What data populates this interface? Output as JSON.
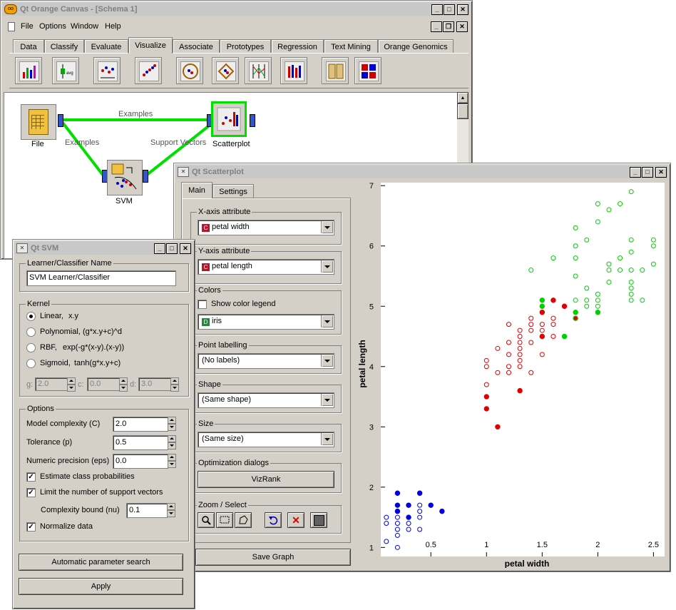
{
  "main_window": {
    "title": "Qt Orange Canvas - [Schema 1]",
    "menu": [
      "File",
      "Options",
      "Window",
      "Help"
    ],
    "tabs": [
      "Data",
      "Classify",
      "Evaluate",
      "Visualize",
      "Associate",
      "Prototypes",
      "Regression",
      "Text Mining",
      "Orange Genomics"
    ],
    "active_tab": "Visualize",
    "toolbar_icons": [
      "bar-chart-icon",
      "attribute-statistics-icon",
      "distributions-icon",
      "scatter-matrix-icon",
      "radviz-icon",
      "polyviz-icon",
      "parallel-coordinates-icon",
      "survey-plot-icon",
      "sieve-diagram-icon",
      "mosaic-display-icon"
    ]
  },
  "schema": {
    "widgets": {
      "file": "File",
      "scatterplot": "Scatterplot",
      "svm": "SVM"
    },
    "links": {
      "file_scatter": "Examples",
      "file_svm": "Examples",
      "svm_scatter": "Support Vectors"
    },
    "colors": {
      "link": "#00e000"
    }
  },
  "svm_window": {
    "title": "Qt SVM",
    "name_group": "Learner/Classifier Name",
    "name_value": "SVM Learner/Classifier",
    "kernel_group": "Kernel",
    "kernels": [
      {
        "name": "Linear,",
        "formula": "x.y",
        "selected": true
      },
      {
        "name": "Polynomial,",
        "formula": "(g*x.y+c)^d",
        "selected": false
      },
      {
        "name": "RBF,",
        "formula": "exp(-g*(x-y).(x-y))",
        "selected": false
      },
      {
        "name": "Sigmoid,",
        "formula": "tanh(g*x.y+c)",
        "selected": false
      }
    ],
    "kernel_params": {
      "g_label": "g:",
      "g_value": "2.0",
      "c_label": "c:",
      "c_value": "0.0",
      "d_label": "d:",
      "d_value": "3.0"
    },
    "options_group": "Options",
    "model_complexity": {
      "label": "Model complexity (C)",
      "value": "2.0"
    },
    "tolerance": {
      "label": "Tolerance (p)",
      "value": "0.5"
    },
    "numeric_precision": {
      "label": "Numeric precision (eps)",
      "value": "0.0"
    },
    "estimate_probabilities": {
      "label": "Estimate class probabilities",
      "checked": true
    },
    "limit_support_vectors": {
      "label": "Limit the number of support vectors",
      "checked": true
    },
    "complexity_bound": {
      "label": "Complexity bound (nu)",
      "value": "0.1"
    },
    "normalize": {
      "label": "Normalize data",
      "checked": true
    },
    "auto_search_button": "Automatic parameter search",
    "apply_button": "Apply"
  },
  "scatter_window": {
    "title": "Qt Scatterplot",
    "tabs": [
      "Main",
      "Settings"
    ],
    "active_tab": "Main",
    "x_axis_group": "X-axis attribute",
    "x_attr": {
      "badge": "C",
      "value": "petal width"
    },
    "y_axis_group": "Y-axis attribute",
    "y_attr": {
      "badge": "C",
      "value": "petal length"
    },
    "colors_group": "Colors",
    "show_color_legend": {
      "label": "Show color legend",
      "checked": false
    },
    "color_attr": {
      "badge": "D",
      "value": "iris"
    },
    "labelling_group": "Point labelling",
    "labelling_value": "(No labels)",
    "shape_group": "Shape",
    "shape_value": "(Same shape)",
    "size_group": "Size",
    "size_value": "(Same size)",
    "optimization_group": "Optimization dialogs",
    "vizrank_button": "VizRank",
    "zoom_group": "Zoom / Select",
    "zoom_tools": [
      "zoom-icon",
      "rectangle-select-icon",
      "polygon-select-icon",
      "undo-icon",
      "remove-selection-icon",
      "send-selection-icon"
    ],
    "save_button": "Save Graph",
    "badge_colors": {
      "continuous": "#c0102c",
      "discrete": "#208a3a"
    }
  },
  "chart_data": {
    "type": "scatter",
    "xlabel": "petal width",
    "ylabel": "petal length",
    "xlim": [
      0.05,
      2.6
    ],
    "ylim": [
      0.85,
      7.05
    ],
    "xticks": [
      0.5,
      1,
      1.5,
      2,
      2.5
    ],
    "yticks": [
      1,
      2,
      3,
      4,
      5,
      6,
      7
    ],
    "tick_labels_x": [
      "0.5",
      "1",
      "1.5",
      "2",
      "2.5"
    ],
    "tick_labels_y": [
      "1",
      "2",
      "3",
      "4",
      "5",
      "6",
      "7"
    ],
    "grid": false,
    "series": [
      {
        "class": "setosa",
        "color": "#0000e0",
        "points": [
          [
            0.1,
            1.1
          ],
          [
            0.1,
            1.4
          ],
          [
            0.1,
            1.5
          ],
          [
            0.2,
            1.0
          ],
          [
            0.2,
            1.2
          ],
          [
            0.2,
            1.3
          ],
          [
            0.2,
            1.4
          ],
          [
            0.2,
            1.5
          ],
          [
            0.2,
            1.6
          ],
          [
            0.3,
            1.3
          ],
          [
            0.3,
            1.4
          ],
          [
            0.3,
            1.7
          ],
          [
            0.4,
            1.3
          ],
          [
            0.4,
            1.5
          ],
          [
            0.4,
            1.6
          ],
          [
            0.4,
            1.7
          ],
          [
            0.4,
            1.9
          ],
          [
            0.5,
            1.7
          ]
        ],
        "support_vectors": [
          [
            0.2,
            1.9
          ],
          [
            0.2,
            1.7
          ],
          [
            0.2,
            1.6
          ],
          [
            0.3,
            1.5
          ],
          [
            0.3,
            1.7
          ],
          [
            0.4,
            1.9
          ],
          [
            0.5,
            1.7
          ],
          [
            0.6,
            1.6
          ]
        ]
      },
      {
        "class": "versicolor",
        "color": "#e00000",
        "points": [
          [
            1.0,
            3.7
          ],
          [
            1.0,
            4.0
          ],
          [
            1.0,
            4.1
          ],
          [
            1.1,
            3.9
          ],
          [
            1.1,
            4.3
          ],
          [
            1.2,
            3.9
          ],
          [
            1.2,
            4.0
          ],
          [
            1.2,
            4.2
          ],
          [
            1.2,
            4.4
          ],
          [
            1.2,
            4.7
          ],
          [
            1.3,
            4.0
          ],
          [
            1.3,
            4.1
          ],
          [
            1.3,
            4.2
          ],
          [
            1.3,
            4.3
          ],
          [
            1.3,
            4.4
          ],
          [
            1.3,
            4.5
          ],
          [
            1.3,
            4.6
          ],
          [
            1.4,
            3.9
          ],
          [
            1.4,
            4.4
          ],
          [
            1.4,
            4.6
          ],
          [
            1.4,
            4.7
          ],
          [
            1.4,
            4.8
          ],
          [
            1.5,
            4.2
          ],
          [
            1.5,
            4.5
          ],
          [
            1.5,
            4.6
          ],
          [
            1.5,
            4.7
          ],
          [
            1.5,
            4.9
          ],
          [
            1.6,
            4.5
          ],
          [
            1.6,
            4.7
          ],
          [
            1.6,
            4.8
          ]
        ],
        "support_vectors": [
          [
            1.0,
            3.3
          ],
          [
            1.0,
            3.5
          ],
          [
            1.1,
            3.0
          ],
          [
            1.3,
            3.6
          ],
          [
            1.5,
            4.5
          ],
          [
            1.5,
            4.9
          ],
          [
            1.6,
            5.1
          ],
          [
            1.7,
            5.0
          ],
          [
            1.8,
            4.8
          ]
        ]
      },
      {
        "class": "virginica",
        "color": "#00d000",
        "points": [
          [
            1.4,
            5.6
          ],
          [
            1.5,
            5.0
          ],
          [
            1.5,
            5.1
          ],
          [
            1.6,
            5.8
          ],
          [
            1.7,
            4.5
          ],
          [
            1.8,
            4.8
          ],
          [
            1.8,
            5.1
          ],
          [
            1.8,
            5.5
          ],
          [
            1.8,
            5.8
          ],
          [
            1.8,
            6.0
          ],
          [
            1.8,
            6.3
          ],
          [
            1.9,
            5.0
          ],
          [
            1.9,
            5.1
          ],
          [
            1.9,
            5.3
          ],
          [
            1.9,
            6.1
          ],
          [
            2.0,
            5.0
          ],
          [
            2.0,
            5.1
          ],
          [
            2.0,
            5.2
          ],
          [
            2.0,
            6.4
          ],
          [
            2.0,
            6.7
          ],
          [
            2.1,
            5.4
          ],
          [
            2.1,
            5.6
          ],
          [
            2.1,
            5.7
          ],
          [
            2.1,
            6.6
          ],
          [
            2.2,
            5.6
          ],
          [
            2.2,
            5.8
          ],
          [
            2.2,
            6.7
          ],
          [
            2.3,
            5.1
          ],
          [
            2.3,
            5.2
          ],
          [
            2.3,
            5.3
          ],
          [
            2.3,
            5.4
          ],
          [
            2.3,
            5.6
          ],
          [
            2.3,
            5.9
          ],
          [
            2.3,
            6.1
          ],
          [
            2.3,
            6.9
          ],
          [
            2.4,
            5.1
          ],
          [
            2.4,
            5.6
          ],
          [
            2.5,
            5.7
          ],
          [
            2.5,
            6.0
          ],
          [
            2.5,
            6.1
          ]
        ],
        "support_vectors": [
          [
            1.5,
            5.1
          ],
          [
            1.5,
            5.0
          ],
          [
            1.7,
            4.5
          ],
          [
            1.8,
            4.9
          ],
          [
            2.0,
            4.9
          ]
        ]
      }
    ]
  }
}
